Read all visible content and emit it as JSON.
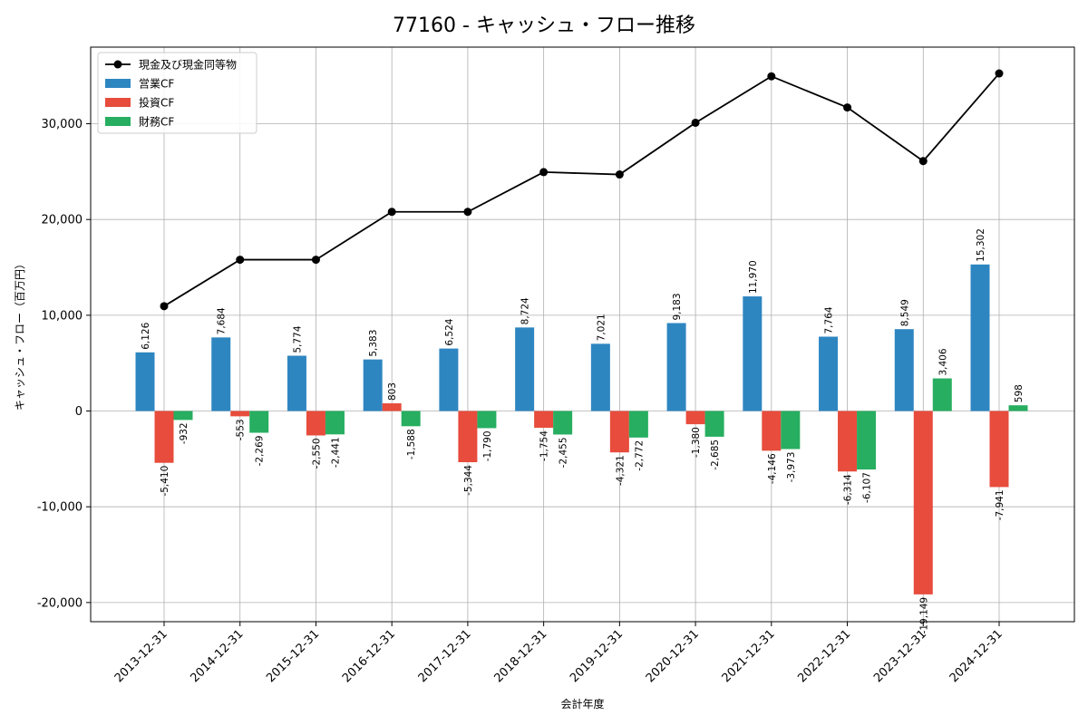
{
  "chart_data": {
    "type": "bar",
    "title": "77160 - キャッシュ・フロー推移",
    "xlabel": "会計年度",
    "ylabel": "キャッシュ・フロー（百万円）",
    "categories": [
      "2013-12-31",
      "2014-12-31",
      "2015-12-31",
      "2016-12-31",
      "2017-12-31",
      "2018-12-31",
      "2019-12-31",
      "2020-12-31",
      "2021-12-31",
      "2022-12-31",
      "2023-12-31",
      "2024-12-31"
    ],
    "series": [
      {
        "name": "営業CF",
        "type": "bar",
        "color": "#2e86c1",
        "values": [
          6126,
          7684,
          5774,
          5383,
          6524,
          8724,
          7021,
          9183,
          11970,
          7764,
          8549,
          15302
        ]
      },
      {
        "name": "投資CF",
        "type": "bar",
        "color": "#e74c3c",
        "values": [
          -5410,
          -553,
          -2550,
          803,
          -5344,
          -1754,
          -4321,
          -1380,
          -4146,
          -6314,
          -19149,
          -7941
        ]
      },
      {
        "name": "財務CF",
        "type": "bar",
        "color": "#27ae60",
        "values": [
          -932,
          -2269,
          -2441,
          -1588,
          -1790,
          -2455,
          -2772,
          -2685,
          -3973,
          -6107,
          3406,
          598
        ]
      },
      {
        "name": "現金及び現金同等物",
        "type": "line",
        "color": "#000000",
        "values": [
          10950,
          15800,
          15800,
          20800,
          20800,
          24950,
          24700,
          30100,
          34950,
          31700,
          26100,
          35250
        ]
      }
    ],
    "data_labels": {
      "営業CF": [
        "6,126",
        "7,684",
        "5,774",
        "5,383",
        "6,524",
        "8,724",
        "7,021",
        "9,183",
        "11,970",
        "7,764",
        "8,549",
        "15,302"
      ],
      "投資CF": [
        "-5,410",
        "-553",
        "-2,550",
        "803",
        "-5,344",
        "-1,754",
        "-4,321",
        "-1,380",
        "-4,146",
        "-6,314",
        "-19,149",
        "-7,941"
      ],
      "財務CF": [
        "-932",
        "-2,269",
        "-2,441",
        "-1,588",
        "-1,790",
        "-2,455",
        "-2,772",
        "-2,685",
        "-3,973",
        "-6,107",
        "3,406",
        "598"
      ]
    },
    "ylim": [
      -22000,
      38000
    ],
    "yticks": [
      -20000,
      -10000,
      0,
      10000,
      20000,
      30000
    ],
    "ytick_labels": [
      "-20,000",
      "-10,000",
      "0",
      "10,000",
      "20,000",
      "30,000"
    ],
    "grid": true,
    "legend_position": "top-left"
  }
}
